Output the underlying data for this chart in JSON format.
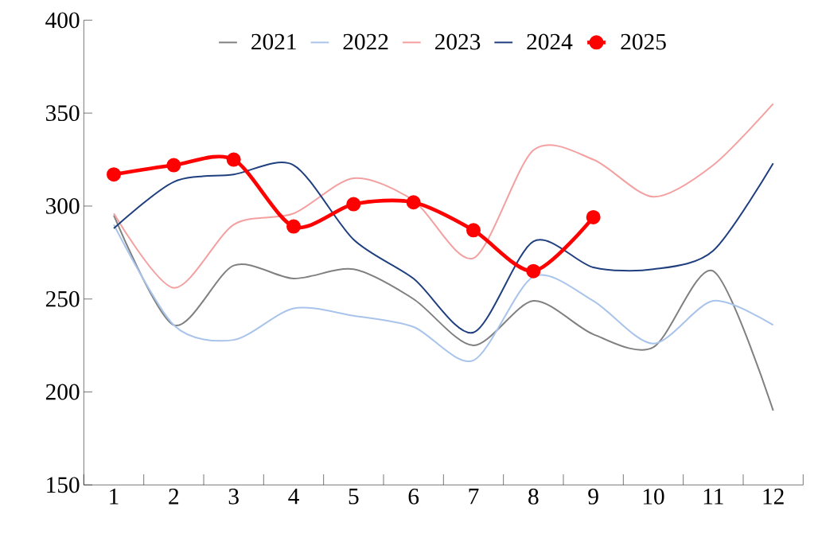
{
  "chart_data": {
    "type": "line",
    "categories": [
      "1",
      "2",
      "3",
      "4",
      "5",
      "6",
      "7",
      "8",
      "9",
      "10",
      "11",
      "12"
    ],
    "series": [
      {
        "name": "2021",
        "color": "#808080",
        "marker": "none",
        "values": [
          295,
          236,
          268,
          261,
          266,
          250,
          225,
          249,
          231,
          224,
          265,
          190
        ]
      },
      {
        "name": "2022",
        "color": "#a9c4eb",
        "marker": "none",
        "values": [
          290,
          236,
          228,
          245,
          241,
          235,
          217,
          262,
          249,
          226,
          249,
          236
        ]
      },
      {
        "name": "2023",
        "color": "#f4a0a0",
        "marker": "none",
        "values": [
          296,
          256,
          290,
          296,
          315,
          303,
          272,
          330,
          325,
          305,
          322,
          355
        ]
      },
      {
        "name": "2024",
        "color": "#1f3f7f",
        "marker": "none",
        "values": [
          288,
          313,
          317,
          322,
          282,
          261,
          232,
          281,
          267,
          266,
          276,
          323
        ]
      },
      {
        "name": "2025",
        "color": "#ff0000",
        "marker": "circle",
        "values": [
          317,
          322,
          325,
          289,
          301,
          302,
          287,
          265,
          294,
          null,
          null,
          null
        ]
      }
    ],
    "ylim": [
      150,
      400
    ],
    "yticks": [
      150,
      200,
      250,
      300,
      350,
      400
    ],
    "grid": false,
    "legend": "top"
  }
}
